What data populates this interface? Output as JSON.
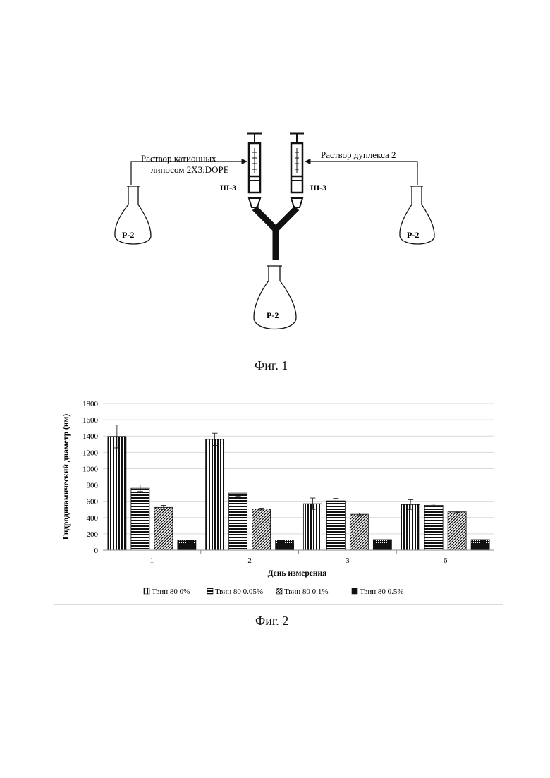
{
  "figure1": {
    "caption": "Фиг. 1",
    "left_label_line1": "Раствор катионных",
    "left_label_line2": "липосом 2Х3:DOPE",
    "right_label": "Раствор дуплекса 2",
    "pump_left": "Ш-3",
    "pump_right": "Ш-3",
    "flask_left": "Р-2",
    "flask_right": "Р-2",
    "flask_bottom": "Р-2"
  },
  "figure2": {
    "caption": "Фиг. 2"
  },
  "chart_data": {
    "type": "bar",
    "categories": [
      "1",
      "2",
      "3",
      "6"
    ],
    "series": [
      {
        "name": "Твин 80 0%",
        "pattern": "vertical",
        "values": [
          1395,
          1360,
          570,
          560
        ],
        "errors": [
          140,
          75,
          70,
          60
        ]
      },
      {
        "name": "Твин 80 0.05%",
        "pattern": "horizontal",
        "values": [
          760,
          700,
          605,
          550
        ],
        "errors": [
          40,
          40,
          30,
          15
        ]
      },
      {
        "name": "Твин 80 0.1%",
        "pattern": "diagonal",
        "values": [
          525,
          505,
          440,
          470
        ],
        "errors": [
          25,
          10,
          15,
          10
        ]
      },
      {
        "name": "Твин 80 0.5%",
        "pattern": "dots",
        "values": [
          120,
          125,
          130,
          130
        ],
        "errors": [
          0,
          0,
          0,
          0
        ]
      }
    ],
    "xlabel": "День измерения",
    "ylabel": "Гидродинамический диаметр (нм)",
    "ylim": [
      0,
      1800
    ],
    "yticks": [
      0,
      200,
      400,
      600,
      800,
      1000,
      1200,
      1400,
      1600,
      1800
    ],
    "grid": true,
    "legend_position": "bottom"
  }
}
